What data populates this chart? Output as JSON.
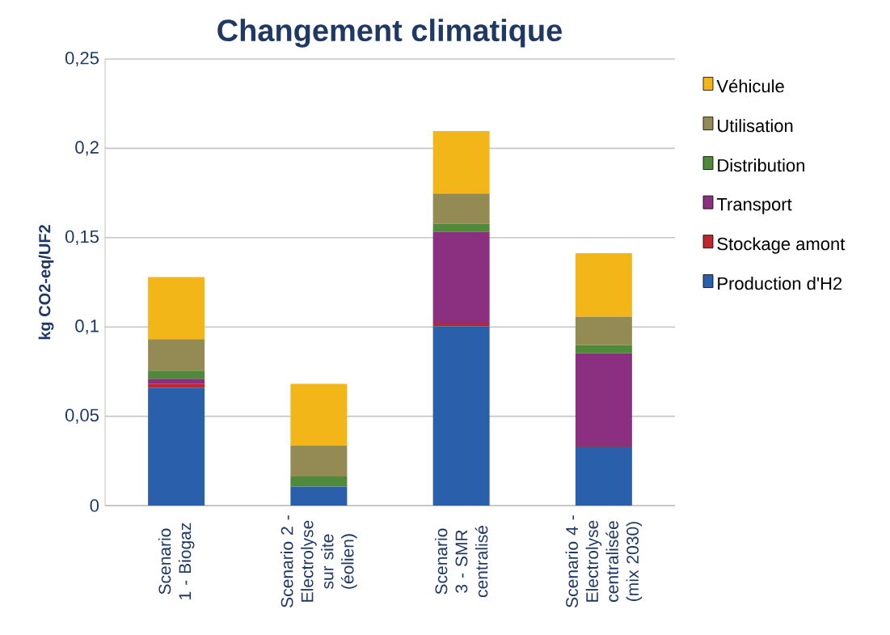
{
  "chart_data": {
    "type": "bar",
    "stacked": true,
    "title": "Changement climatique",
    "ylabel": "kg CO2-eq/UF2",
    "categories": [
      "Scenario 1 - Biogaz",
      "Scenario 2 - Electrolyse sur site (éolien)",
      "Scenario 3 - SMR centralisé",
      "Scenario 4 - Electrolyse centralisée (mix 2030)"
    ],
    "series": [
      {
        "name": "Production d'H2",
        "color": "#2a5fac",
        "values": [
          0.066,
          0.0106,
          0.1004,
          0.033
        ]
      },
      {
        "name": "Stockage amont",
        "color": "#c0262d",
        "values": [
          0.002,
          0,
          0.002,
          0.001
        ]
      },
      {
        "name": "Transport",
        "color": "#8b2f80",
        "values": [
          0.003,
          0,
          0.0508,
          0.0513
        ]
      },
      {
        "name": "Distribution",
        "color": "#4e8a3a",
        "values": [
          0.0045,
          0.0057,
          0.0045,
          0.0045
        ]
      },
      {
        "name": "Utilisation",
        "color": "#948a54",
        "values": [
          0.0177,
          0.0172,
          0.017,
          0.016
        ]
      },
      {
        "name": "Véhicule",
        "color": "#f2b619",
        "values": [
          0.0347,
          0.0347,
          0.035,
          0.0355
        ]
      }
    ],
    "ylim": [
      0,
      0.25
    ],
    "yticks": [
      0,
      {
        "value": 0.05,
        "label": "0,05"
      },
      {
        "value": 0.1,
        "label": "0,1"
      },
      {
        "value": 0.15,
        "label": "0,15"
      },
      {
        "value": 0.2,
        "label": "0,2"
      },
      {
        "value": 0.25,
        "label": "0,25"
      }
    ],
    "grid": "y",
    "legend": "right"
  }
}
